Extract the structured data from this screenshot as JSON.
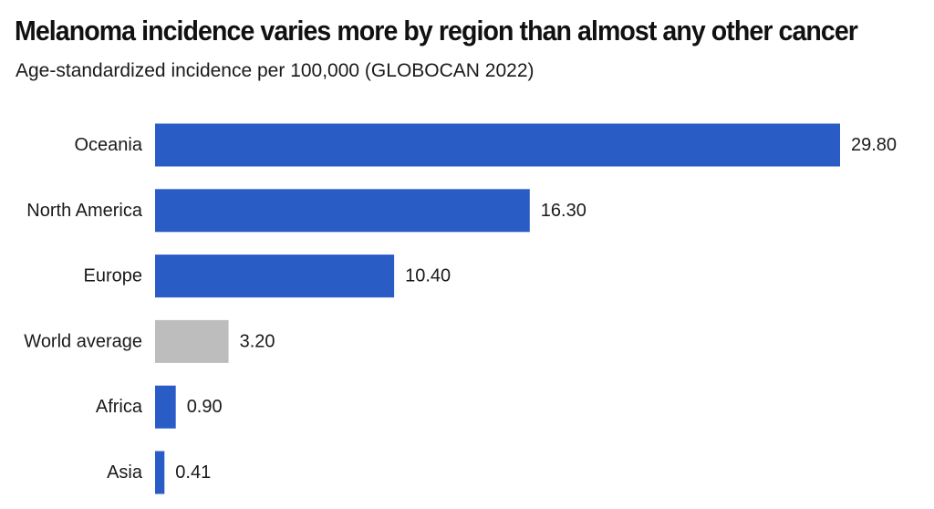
{
  "chart_data": {
    "type": "bar",
    "orientation": "horizontal",
    "title": "Melanoma incidence varies more by region than almost any other cancer",
    "subtitle": "Age-standardized incidence per 100,000 (GLOBOCAN 2022)",
    "xlabel": "",
    "ylabel": "",
    "xlim": [
      0,
      29.8
    ],
    "grid": false,
    "categories": [
      "Oceania",
      "North America",
      "Europe",
      "World average",
      "Africa",
      "Asia"
    ],
    "values": [
      29.8,
      16.3,
      10.4,
      3.2,
      0.9,
      0.41
    ],
    "value_labels": [
      "29.80",
      "16.30",
      "10.40",
      "3.20",
      "0.90",
      "0.41"
    ],
    "colors": {
      "region": "#2a5cc6",
      "world_average": "#bdbdbd"
    },
    "highlight_category": "World average"
  }
}
